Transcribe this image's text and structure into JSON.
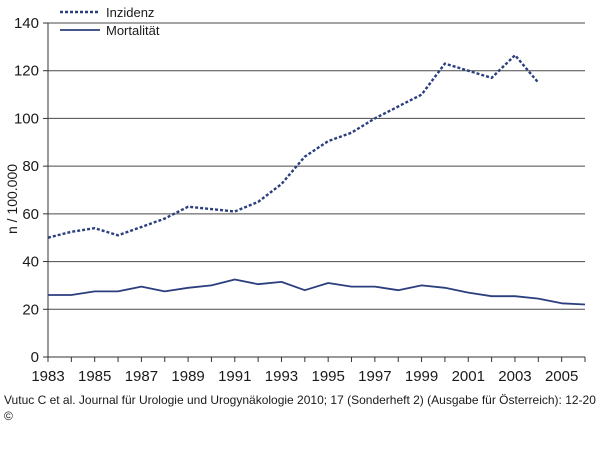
{
  "chart_data": {
    "type": "line",
    "title": "",
    "xlabel": "",
    "ylabel": "n / 100.000",
    "xlim": [
      1983,
      2006
    ],
    "ylim": [
      0,
      140
    ],
    "yticks": [
      "0",
      "20",
      "40",
      "60",
      "80",
      "100",
      "120",
      "140"
    ],
    "xticks": [
      "1983",
      "1985",
      "1987",
      "1989",
      "1991",
      "1993",
      "1995",
      "1997",
      "1999",
      "2001",
      "2003",
      "2005"
    ],
    "grid": "horizontal",
    "legend_position": "top-left",
    "series": [
      {
        "name": "Inzidenz",
        "style": "dashed",
        "color": "#2b3f7e",
        "x": [
          1983,
          1984,
          1985,
          1986,
          1987,
          1988,
          1989,
          1990,
          1991,
          1992,
          1993,
          1994,
          1995,
          1996,
          1997,
          1998,
          1999,
          2000,
          2001,
          2002,
          2003,
          2004
        ],
        "y": [
          50,
          52.5,
          54,
          51,
          54.5,
          58,
          63,
          62,
          61,
          65,
          72.5,
          84,
          90.5,
          94,
          100,
          105,
          110,
          123,
          120,
          117,
          126.5,
          115
        ]
      },
      {
        "name": "Mortalität",
        "style": "solid",
        "color": "#2b3f7e",
        "x": [
          1983,
          1984,
          1985,
          1986,
          1987,
          1988,
          1989,
          1990,
          1991,
          1992,
          1993,
          1994,
          1995,
          1996,
          1997,
          1998,
          1999,
          2000,
          2001,
          2002,
          2003,
          2004,
          2005,
          2006
        ],
        "y": [
          26,
          26,
          27.5,
          27.5,
          29.5,
          27.5,
          29,
          30,
          32.5,
          30.5,
          31.5,
          28,
          31,
          29.5,
          29.5,
          28,
          30,
          29,
          27,
          25.5,
          25.5,
          24.5,
          22.5,
          22
        ]
      }
    ]
  },
  "citation": "Vutuc C et al. Journal für Urologie und Urogynäkologie 2010; 17 (Sonderheft 2) (Ausgabe für Österreich): 12-20 ©"
}
